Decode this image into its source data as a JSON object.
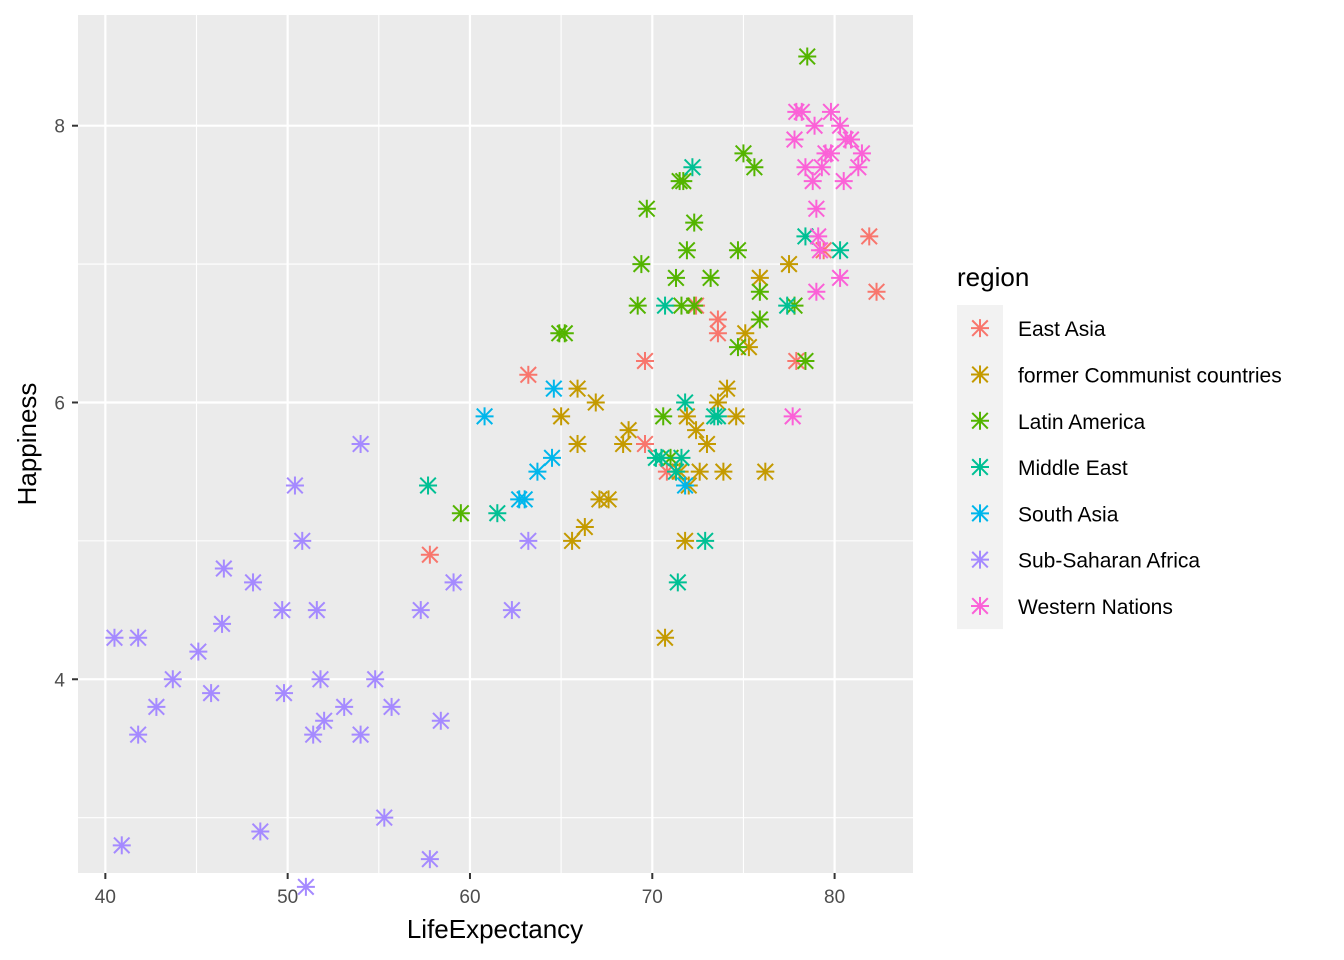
{
  "chart_data": {
    "type": "scatter",
    "title": "",
    "xlabel": "LifeExpectancy",
    "ylabel": "Happiness",
    "xlim": [
      38.5,
      84.3
    ],
    "ylim": [
      2.6,
      8.8
    ],
    "x_ticks": [
      40,
      50,
      60,
      70,
      80
    ],
    "y_ticks": [
      4,
      6,
      8
    ],
    "grid": true,
    "legend": {
      "title": "region",
      "placement": "right"
    },
    "marker": "asterisk",
    "series": [
      {
        "name": "East Asia",
        "color": "#F8766D",
        "points": [
          [
            57.8,
            4.9
          ],
          [
            63.2,
            6.2
          ],
          [
            69.6,
            6.3
          ],
          [
            69.6,
            5.7
          ],
          [
            70.8,
            5.5
          ],
          [
            72.4,
            6.7
          ],
          [
            73.6,
            6.6
          ],
          [
            73.6,
            6.5
          ],
          [
            77.9,
            6.3
          ],
          [
            79.4,
            7.1
          ],
          [
            81.9,
            7.2
          ],
          [
            82.3,
            6.8
          ]
        ]
      },
      {
        "name": "former Communist countries",
        "color": "#C49A00",
        "points": [
          [
            70.7,
            4.3
          ],
          [
            65.6,
            5.0
          ],
          [
            66.3,
            5.1
          ],
          [
            67.1,
            5.3
          ],
          [
            67.6,
            5.3
          ],
          [
            65.0,
            5.9
          ],
          [
            65.9,
            6.1
          ],
          [
            65.9,
            5.7
          ],
          [
            66.9,
            6.0
          ],
          [
            68.4,
            5.7
          ],
          [
            68.7,
            5.8
          ],
          [
            71.5,
            5.5
          ],
          [
            71.8,
            5.0
          ],
          [
            72.0,
            5.4
          ],
          [
            72.6,
            5.5
          ],
          [
            73.0,
            5.7
          ],
          [
            72.4,
            5.8
          ],
          [
            71.9,
            5.9
          ],
          [
            73.6,
            6.0
          ],
          [
            74.1,
            6.1
          ],
          [
            74.6,
            5.9
          ],
          [
            73.9,
            5.5
          ],
          [
            75.1,
            6.5
          ],
          [
            75.3,
            6.4
          ],
          [
            75.9,
            6.9
          ],
          [
            76.2,
            5.5
          ],
          [
            77.5,
            7.0
          ]
        ]
      },
      {
        "name": "Latin America",
        "color": "#53B400",
        "points": [
          [
            59.5,
            5.2
          ],
          [
            64.9,
            6.5
          ],
          [
            65.2,
            6.5
          ],
          [
            69.2,
            6.7
          ],
          [
            69.4,
            7.0
          ],
          [
            69.7,
            7.4
          ],
          [
            70.6,
            5.9
          ],
          [
            71.0,
            5.6
          ],
          [
            71.3,
            6.9
          ],
          [
            71.5,
            7.6
          ],
          [
            71.7,
            7.6
          ],
          [
            71.6,
            6.7
          ],
          [
            71.9,
            7.1
          ],
          [
            72.3,
            7.3
          ],
          [
            72.3,
            6.7
          ],
          [
            73.2,
            6.9
          ],
          [
            74.7,
            7.1
          ],
          [
            74.7,
            6.4
          ],
          [
            75.0,
            7.8
          ],
          [
            75.6,
            7.7
          ],
          [
            75.9,
            6.8
          ],
          [
            75.9,
            6.6
          ],
          [
            77.8,
            6.7
          ],
          [
            78.4,
            6.3
          ],
          [
            78.5,
            8.5
          ]
        ]
      },
      {
        "name": "Middle East",
        "color": "#00C094",
        "points": [
          [
            57.7,
            5.4
          ],
          [
            61.5,
            5.2
          ],
          [
            70.2,
            5.6
          ],
          [
            70.5,
            5.6
          ],
          [
            70.7,
            6.7
          ],
          [
            71.4,
            4.7
          ],
          [
            71.3,
            5.5
          ],
          [
            71.6,
            5.6
          ],
          [
            71.8,
            6.0
          ],
          [
            72.2,
            7.7
          ],
          [
            72.9,
            5.0
          ],
          [
            73.4,
            5.9
          ],
          [
            73.6,
            5.9
          ],
          [
            77.4,
            6.7
          ],
          [
            78.4,
            7.2
          ],
          [
            80.3,
            7.1
          ]
        ]
      },
      {
        "name": "South Asia",
        "color": "#00B6EB",
        "points": [
          [
            60.8,
            5.9
          ],
          [
            62.7,
            5.3
          ],
          [
            63.0,
            5.3
          ],
          [
            63.7,
            5.5
          ],
          [
            64.5,
            5.6
          ],
          [
            64.6,
            6.1
          ],
          [
            71.8,
            5.4
          ]
        ]
      },
      {
        "name": "Sub-Saharan Africa",
        "color": "#A58AFF",
        "points": [
          [
            40.5,
            4.3
          ],
          [
            40.9,
            2.8
          ],
          [
            41.8,
            4.3
          ],
          [
            41.8,
            3.6
          ],
          [
            42.8,
            3.8
          ],
          [
            43.7,
            4.0
          ],
          [
            45.1,
            4.2
          ],
          [
            45.8,
            3.9
          ],
          [
            46.4,
            4.4
          ],
          [
            46.5,
            4.8
          ],
          [
            48.1,
            4.7
          ],
          [
            48.5,
            2.9
          ],
          [
            49.7,
            4.5
          ],
          [
            49.8,
            3.9
          ],
          [
            50.4,
            5.4
          ],
          [
            50.8,
            5.0
          ],
          [
            51.0,
            2.5
          ],
          [
            51.4,
            3.6
          ],
          [
            51.6,
            4.5
          ],
          [
            51.8,
            4.0
          ],
          [
            52.0,
            3.7
          ],
          [
            53.1,
            3.8
          ],
          [
            54.0,
            5.7
          ],
          [
            54.0,
            3.6
          ],
          [
            54.8,
            4.0
          ],
          [
            55.3,
            3.0
          ],
          [
            55.7,
            3.8
          ],
          [
            57.3,
            4.5
          ],
          [
            57.8,
            2.7
          ],
          [
            58.4,
            3.7
          ],
          [
            59.1,
            4.7
          ],
          [
            62.3,
            4.5
          ],
          [
            63.2,
            5.0
          ]
        ]
      },
      {
        "name": "Western Nations",
        "color": "#FB61D7",
        "points": [
          [
            77.7,
            5.9
          ],
          [
            77.8,
            7.9
          ],
          [
            77.9,
            8.1
          ],
          [
            78.2,
            8.1
          ],
          [
            78.4,
            7.7
          ],
          [
            78.8,
            7.6
          ],
          [
            78.9,
            8.0
          ],
          [
            79.0,
            6.8
          ],
          [
            79.0,
            7.4
          ],
          [
            79.1,
            7.2
          ],
          [
            79.2,
            7.1
          ],
          [
            79.3,
            7.7
          ],
          [
            79.5,
            7.8
          ],
          [
            79.8,
            7.8
          ],
          [
            79.8,
            8.1
          ],
          [
            80.3,
            6.9
          ],
          [
            80.3,
            8.0
          ],
          [
            80.5,
            7.6
          ],
          [
            80.6,
            7.9
          ],
          [
            80.9,
            7.9
          ],
          [
            81.3,
            7.7
          ],
          [
            81.5,
            7.8
          ]
        ]
      }
    ]
  }
}
